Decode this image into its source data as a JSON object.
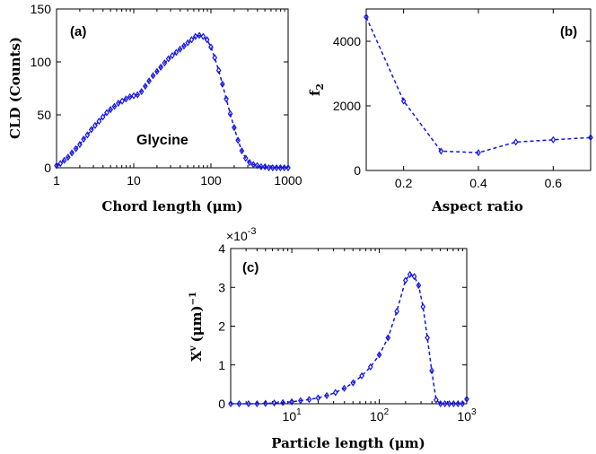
{
  "chart_data": [
    {
      "id": "a",
      "type": "line",
      "tag": "(a)",
      "annotation": "Glycine",
      "xlabel": "Chord length (μm)",
      "ylabel": "CLD (Counts)",
      "xscale": "log",
      "xlim": [
        1,
        1000
      ],
      "ylim": [
        0,
        150
      ],
      "xticks": [
        1,
        10,
        100,
        1000
      ],
      "xticklabels": [
        "1",
        "10",
        "100",
        "1000"
      ],
      "yticks": [
        0,
        50,
        100,
        150
      ],
      "yticklabels": [
        "0",
        "50",
        "100",
        "150"
      ],
      "series": [
        {
          "name": "Glycine CLD",
          "x": [
            1.0,
            1.12,
            1.26,
            1.41,
            1.58,
            1.78,
            2.0,
            2.24,
            2.51,
            2.82,
            3.16,
            3.55,
            3.98,
            4.47,
            5.01,
            5.62,
            6.31,
            7.08,
            7.94,
            8.91,
            10.0,
            11.2,
            12.6,
            14.1,
            15.8,
            17.8,
            20.0,
            22.4,
            25.1,
            28.2,
            31.6,
            35.5,
            39.8,
            44.7,
            50.1,
            56.2,
            63.1,
            70.8,
            79.4,
            89.1,
            100,
            112,
            126,
            141,
            158,
            178,
            200,
            224,
            251,
            282,
            316,
            355,
            398,
            447,
            501,
            562,
            631,
            708,
            794,
            891,
            1000
          ],
          "values": [
            2,
            4,
            7,
            10,
            14,
            18,
            22,
            27,
            31,
            36,
            40,
            44,
            48,
            52,
            55,
            58,
            61,
            63,
            65,
            67,
            68,
            69,
            72,
            77,
            82,
            87,
            91,
            95,
            99,
            103,
            106,
            109,
            112,
            115,
            118,
            121,
            124,
            125,
            124,
            121,
            114,
            104,
            92,
            79,
            65,
            51,
            38,
            26,
            16,
            9,
            5,
            3,
            2,
            1,
            1,
            0,
            0,
            0,
            0,
            0,
            0
          ]
        }
      ]
    },
    {
      "id": "b",
      "type": "line",
      "tag": "(b)",
      "xlabel": "Aspect ratio",
      "ylabel": "f",
      "ylabel_sub": "2",
      "xlim": [
        0.1,
        0.7
      ],
      "ylim": [
        0,
        5000
      ],
      "xticks": [
        0.2,
        0.4,
        0.6
      ],
      "xticklabels": [
        "0.2",
        "0.4",
        "0.6"
      ],
      "yticks": [
        0,
        2000,
        4000
      ],
      "yticklabels": [
        "0",
        "2000",
        "4000"
      ],
      "series": [
        {
          "name": "f2",
          "x": [
            0.1,
            0.2,
            0.3,
            0.4,
            0.5,
            0.6,
            0.7
          ],
          "values": [
            4750,
            2150,
            600,
            550,
            880,
            950,
            1020
          ]
        }
      ]
    },
    {
      "id": "c",
      "type": "line",
      "tag": "(c)",
      "xlabel": "Particle length (μm)",
      "ylabel": "X",
      "ylabel_sup": "v",
      "ylabel_unit": "(μm)",
      "ylabel_unit_sup": "−1",
      "multiplier_base": "×10",
      "multiplier_exp": "-3",
      "xscale": "log",
      "xlim": [
        2,
        1000
      ],
      "ylim": [
        0,
        0.004
      ],
      "xticks": [
        10,
        100,
        1000
      ],
      "xticklabels_base": "10",
      "xticklabels_exp": [
        "1",
        "2",
        "3"
      ],
      "yticks": [
        0,
        0.001,
        0.002,
        0.003,
        0.004
      ],
      "yticklabels": [
        "0",
        "1",
        "2",
        "3",
        "4"
      ],
      "series": [
        {
          "name": "Xv",
          "x": [
            2.0,
            2.5,
            3.2,
            4.0,
            5.0,
            6.3,
            7.9,
            10,
            12.6,
            15.8,
            20,
            25.1,
            31.6,
            39.8,
            50.1,
            63.1,
            79.4,
            100,
            125.9,
            158.5,
            199.5,
            223.9,
            251.2,
            281.8,
            316.2,
            354.8,
            398.1,
            446.7,
            501.2,
            562.3,
            630.9,
            707.9,
            794.3,
            891.3,
            1000
          ],
          "values": [
            0.0,
            0.0,
            0.0,
            0.0,
            1e-05,
            2e-05,
            3e-05,
            5e-05,
            8e-05,
            0.00011,
            0.00015,
            0.00021,
            0.00029,
            0.0004,
            0.00054,
            0.00072,
            0.00095,
            0.00126,
            0.0017,
            0.00238,
            0.00318,
            0.00333,
            0.00328,
            0.00305,
            0.0025,
            0.0017,
            0.00085,
            0.0001,
            0.0,
            0.0,
            0.0,
            0.0,
            0.0,
            0.0,
            0.00012
          ]
        }
      ]
    }
  ]
}
